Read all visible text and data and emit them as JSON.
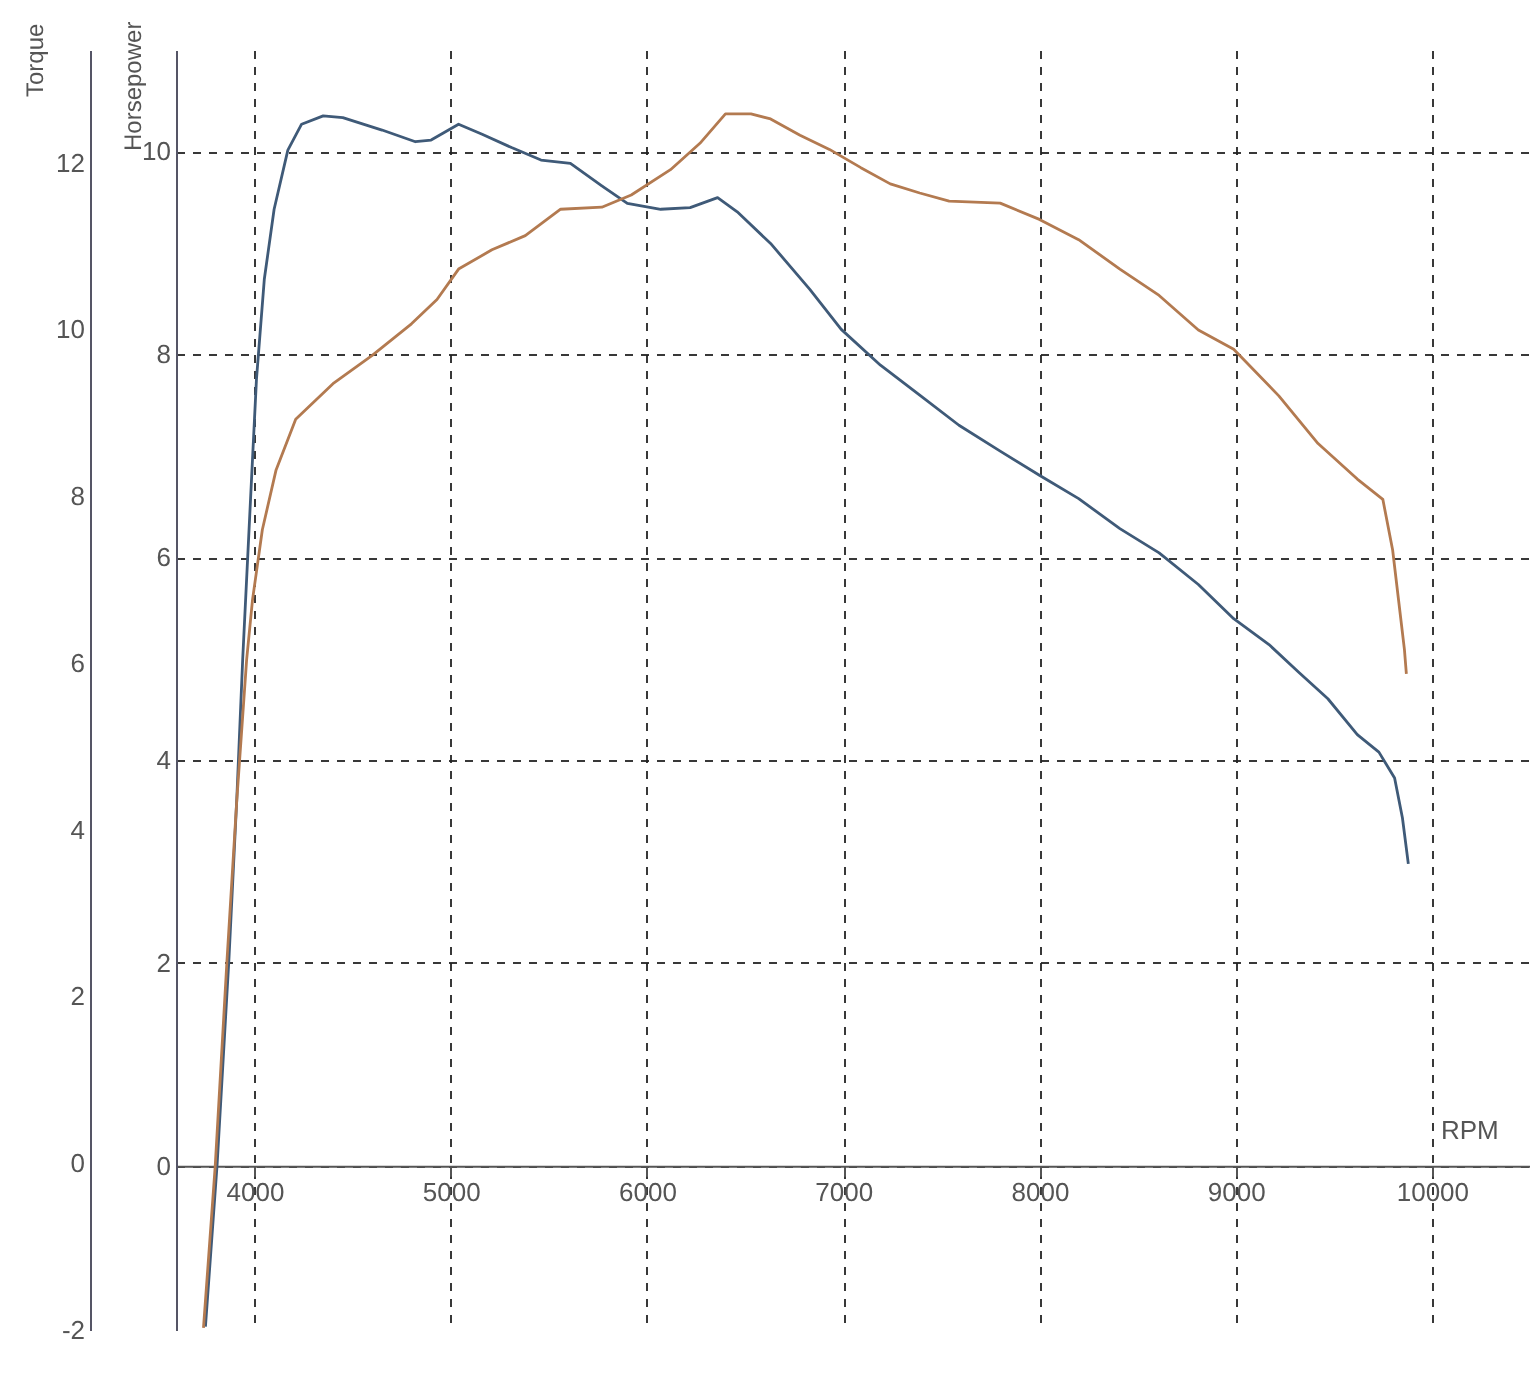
{
  "chart_data": {
    "type": "line",
    "xlabel": "RPM",
    "ylabel": "Torque",
    "y2label": "Horsepower",
    "xlim": [
      3600,
      10500
    ],
    "xticks": [
      4000,
      5000,
      6000,
      7000,
      8000,
      9000,
      10000
    ],
    "ylim": [
      -2,
      13.35
    ],
    "yticks": [
      -2,
      0,
      2,
      4,
      6,
      8,
      10,
      12
    ],
    "y2lim": [
      -1.62,
      11.0
    ],
    "y2ticks": [
      0,
      2,
      4,
      6,
      8,
      10
    ],
    "grid": true,
    "line_style": "solid",
    "series": [
      {
        "color": "#3f5a78",
        "axis": "y",
        "x": [
          3750,
          3810,
          3870,
          3910,
          3940,
          3980,
          4010,
          4050,
          4100,
          4170,
          4240,
          4350,
          4450,
          4650,
          4820,
          4900,
          5040,
          5160,
          5310,
          5460,
          5610,
          5770,
          5900,
          6070,
          6220,
          6360,
          6460,
          6630,
          6830,
          6990,
          7190,
          7390,
          7590,
          7800,
          8000,
          8200,
          8410,
          8610,
          8810,
          8990,
          9170,
          9320,
          9470,
          9620,
          9730,
          9810,
          9850,
          9880
        ],
        "values": [
          -1.96,
          0,
          2.46,
          4.38,
          6.05,
          7.97,
          9.4,
          10.6,
          11.44,
          12.15,
          12.46,
          12.56,
          12.54,
          12.39,
          12.25,
          12.27,
          12.46,
          12.34,
          12.18,
          12.03,
          11.99,
          11.72,
          11.51,
          11.44,
          11.46,
          11.58,
          11.41,
          11.03,
          10.48,
          10.0,
          9.57,
          9.21,
          8.85,
          8.54,
          8.25,
          7.97,
          7.61,
          7.32,
          6.94,
          6.53,
          6.22,
          5.89,
          5.57,
          5.14,
          4.93,
          4.62,
          4.14,
          3.59
        ]
      },
      {
        "color": "#b37a50",
        "axis": "y2",
        "x": [
          3740,
          3800,
          3860,
          3910,
          3960,
          3990,
          4040,
          4110,
          4210,
          4400,
          4600,
          4800,
          4930,
          5040,
          5210,
          5380,
          5560,
          5770,
          5920,
          6120,
          6270,
          6400,
          6530,
          6630,
          6780,
          6930,
          7090,
          7240,
          7390,
          7540,
          7800,
          8000,
          8200,
          8410,
          8610,
          8810,
          8990,
          9220,
          9420,
          9620,
          9750,
          9800,
          9830,
          9860,
          9870
        ],
        "values": [
          -1.6,
          0,
          2.03,
          3.61,
          4.99,
          5.58,
          6.27,
          6.86,
          7.36,
          7.71,
          7.99,
          8.3,
          8.54,
          8.84,
          9.03,
          9.17,
          9.43,
          9.45,
          9.57,
          9.82,
          10.08,
          10.37,
          10.37,
          10.32,
          10.16,
          10.02,
          9.84,
          9.68,
          9.59,
          9.51,
          9.49,
          9.33,
          9.13,
          8.84,
          8.58,
          8.24,
          8.05,
          7.59,
          7.12,
          6.77,
          6.57,
          6.07,
          5.58,
          5.09,
          4.85
        ]
      }
    ]
  }
}
